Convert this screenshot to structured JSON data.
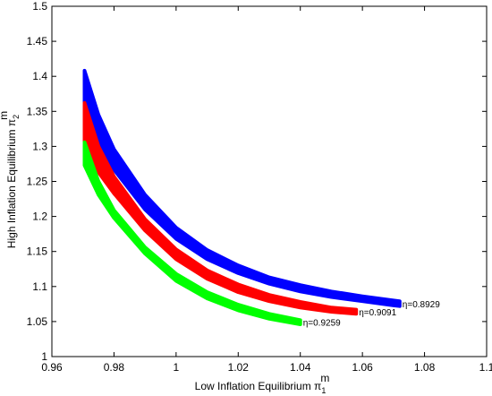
{
  "chart_data": {
    "type": "area",
    "xlabel": "Low Inflation Equilibrium π",
    "xlabel_sub": "1",
    "xlabel_sup": "m",
    "ylabel": "High Inflation Equilibrium π",
    "ylabel_sub": "2",
    "ylabel_sup": "m",
    "xlim": [
      0.96,
      1.1
    ],
    "ylim": [
      1.0,
      1.5
    ],
    "xticks": [
      "0.96",
      "0.98",
      "1",
      "1.02",
      "1.04",
      "1.06",
      "1.08",
      "1.1"
    ],
    "yticks": [
      "1",
      "1.05",
      "1.1",
      "1.15",
      "1.2",
      "1.25",
      "1.3",
      "1.35",
      "1.4",
      "1.45",
      "1.5"
    ],
    "grid": false,
    "series": [
      {
        "name": "η=0.8929",
        "color": "#0000ff",
        "upper": [
          [
            0.9705,
            1.408
          ],
          [
            0.975,
            1.345
          ],
          [
            0.98,
            1.296
          ],
          [
            0.99,
            1.231
          ],
          [
            1.0,
            1.184
          ],
          [
            1.01,
            1.152
          ],
          [
            1.02,
            1.13
          ],
          [
            1.03,
            1.113
          ],
          [
            1.04,
            1.102
          ],
          [
            1.05,
            1.093
          ],
          [
            1.06,
            1.086
          ],
          [
            1.07,
            1.08
          ],
          [
            1.072,
            1.079
          ]
        ],
        "lower": [
          [
            0.9705,
            1.336
          ],
          [
            0.975,
            1.3
          ],
          [
            0.98,
            1.267
          ],
          [
            0.99,
            1.21
          ],
          [
            1.0,
            1.168
          ],
          [
            1.01,
            1.139
          ],
          [
            1.02,
            1.119
          ],
          [
            1.03,
            1.104
          ],
          [
            1.04,
            1.093
          ],
          [
            1.05,
            1.085
          ],
          [
            1.06,
            1.079
          ],
          [
            1.07,
            1.073
          ],
          [
            1.072,
            1.072
          ]
        ]
      },
      {
        "name": "η=0.9091",
        "color": "#ff0000",
        "upper": [
          [
            0.9705,
            1.362
          ],
          [
            0.975,
            1.3
          ],
          [
            0.98,
            1.257
          ],
          [
            0.99,
            1.196
          ],
          [
            1.0,
            1.153
          ],
          [
            1.01,
            1.123
          ],
          [
            1.02,
            1.103
          ],
          [
            1.03,
            1.088
          ],
          [
            1.04,
            1.078
          ],
          [
            1.05,
            1.07
          ],
          [
            1.058,
            1.067
          ]
        ],
        "lower": [
          [
            0.9705,
            1.3
          ],
          [
            0.975,
            1.263
          ],
          [
            0.98,
            1.233
          ],
          [
            0.99,
            1.18
          ],
          [
            1.0,
            1.139
          ],
          [
            1.01,
            1.111
          ],
          [
            1.02,
            1.092
          ],
          [
            1.03,
            1.079
          ],
          [
            1.04,
            1.07
          ],
          [
            1.05,
            1.064
          ],
          [
            1.058,
            1.061
          ]
        ]
      },
      {
        "name": "η=0.9259",
        "color": "#00ff00",
        "upper": [
          [
            0.9705,
            1.306
          ],
          [
            0.975,
            1.25
          ],
          [
            0.98,
            1.209
          ],
          [
            0.99,
            1.156
          ],
          [
            1.0,
            1.118
          ],
          [
            1.01,
            1.092
          ],
          [
            1.02,
            1.074
          ],
          [
            1.03,
            1.061
          ],
          [
            1.04,
            1.052
          ]
        ],
        "lower": [
          [
            0.9705,
            1.273
          ],
          [
            0.975,
            1.231
          ],
          [
            0.98,
            1.198
          ],
          [
            0.99,
            1.147
          ],
          [
            1.0,
            1.108
          ],
          [
            1.01,
            1.083
          ],
          [
            1.02,
            1.066
          ],
          [
            1.03,
            1.054
          ],
          [
            1.04,
            1.046
          ]
        ]
      }
    ]
  }
}
